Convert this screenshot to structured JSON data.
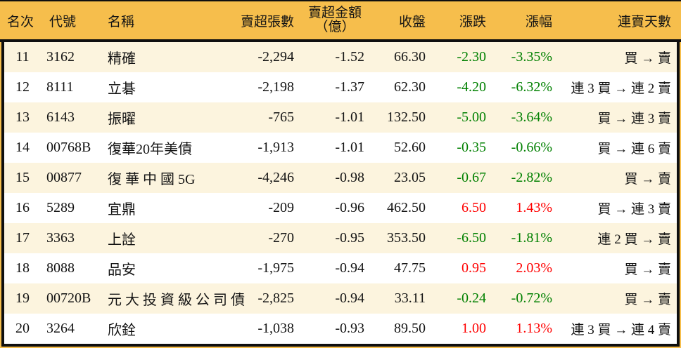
{
  "chart_data": {
    "type": "table",
    "description": "Stock net-sell ranking table, ranks 11-20",
    "colors": {
      "header_bg": "#f6be4c",
      "stripe_row_bg": "#fcf4de",
      "plain_row_bg": "#ffffff",
      "positive_change": "#ff0000",
      "negative_change": "#008000",
      "border": "#0f0f0f",
      "text": "#141414"
    },
    "headers": {
      "rank": "名次",
      "code": "代號",
      "name": "名稱",
      "volume": "賣超張數",
      "amount_line1": "賣超金額",
      "amount_line2": "（億）",
      "close": "收盤",
      "change": "漲跌",
      "change_pct": "漲幅",
      "streak": "連賣天數"
    },
    "rows": [
      {
        "rank": "11",
        "code": "3162",
        "name": "精確",
        "volume": "-2,294",
        "amount": "-1.52",
        "close": "66.30",
        "change": "-2.30",
        "change_pct": "-3.35%",
        "streak": "買 → 賣",
        "trend": "down"
      },
      {
        "rank": "12",
        "code": "8111",
        "name": "立碁",
        "volume": "-2,198",
        "amount": "-1.37",
        "close": "62.30",
        "change": "-4.20",
        "change_pct": "-6.32%",
        "streak": "連 3 買 → 連 2 賣",
        "trend": "down"
      },
      {
        "rank": "13",
        "code": "6143",
        "name": "振曜",
        "volume": "-765",
        "amount": "-1.01",
        "close": "132.50",
        "change": "-5.00",
        "change_pct": "-3.64%",
        "streak": "買 → 連 3 賣",
        "trend": "down"
      },
      {
        "rank": "14",
        "code": "00768B",
        "name": "復華20年美債",
        "volume": "-1,913",
        "amount": "-1.01",
        "close": "52.60",
        "change": "-0.35",
        "change_pct": "-0.66%",
        "streak": "買 → 連 6 賣",
        "trend": "down"
      },
      {
        "rank": "15",
        "code": "00877",
        "name": "復 華 中 國 5G",
        "volume": "-4,246",
        "amount": "-0.98",
        "close": "23.05",
        "change": "-0.67",
        "change_pct": "-2.82%",
        "streak": "買 → 賣",
        "trend": "down"
      },
      {
        "rank": "16",
        "code": "5289",
        "name": "宜鼎",
        "volume": "-209",
        "amount": "-0.96",
        "close": "462.50",
        "change": "6.50",
        "change_pct": "1.43%",
        "streak": "買 → 連 3 賣",
        "trend": "up"
      },
      {
        "rank": "17",
        "code": "3363",
        "name": "上詮",
        "volume": "-270",
        "amount": "-0.95",
        "close": "353.50",
        "change": "-6.50",
        "change_pct": "-1.81%",
        "streak": "連 2 買 → 賣",
        "trend": "down"
      },
      {
        "rank": "18",
        "code": "8088",
        "name": "品安",
        "volume": "-1,975",
        "amount": "-0.94",
        "close": "47.75",
        "change": "0.95",
        "change_pct": "2.03%",
        "streak": "買 → 賣",
        "trend": "up"
      },
      {
        "rank": "19",
        "code": "00720B",
        "name": "元 大 投 資 級 公 司 債",
        "volume": "-2,825",
        "amount": "-0.94",
        "close": "33.11",
        "change": "-0.24",
        "change_pct": "-0.72%",
        "streak": "買 → 賣",
        "trend": "down"
      },
      {
        "rank": "20",
        "code": "3264",
        "name": "欣銓",
        "volume": "-1,038",
        "amount": "-0.93",
        "close": "89.50",
        "change": "1.00",
        "change_pct": "1.13%",
        "streak": "連 3 買 → 連 4 賣",
        "trend": "up"
      }
    ]
  }
}
